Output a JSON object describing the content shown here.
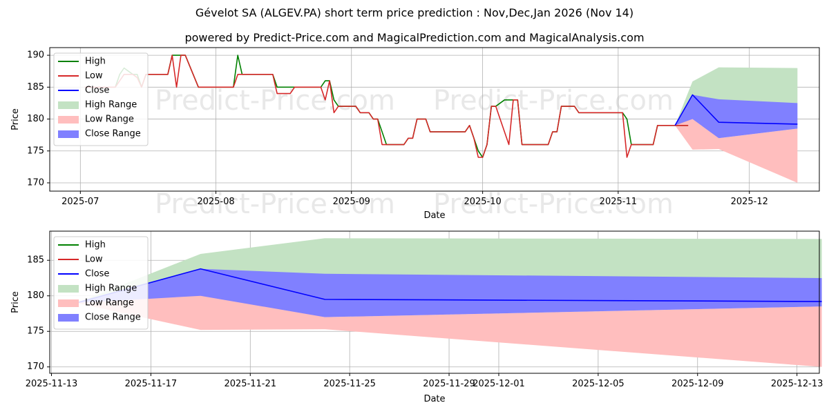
{
  "title": "Gévelot SA (ALGEV.PA) short term price prediction : Nov,Dec,Jan 2026 (Nov 14)",
  "subtitle": "powered by Predict-Price.com and MagicalPrediction.com and MagicalAnalysis.com",
  "watermark": "Predict-Price.com",
  "colors": {
    "high": "#008000",
    "low": "#d62728",
    "close": "#0000ff",
    "high_range": "#c3e2c3",
    "low_range": "#ffbebe",
    "close_range": "#8080ff"
  },
  "chart_data": [
    {
      "type": "line",
      "title": "Gévelot SA (ALGEV.PA) short term price prediction : Nov,Dec,Jan 2026 (Nov 14)",
      "xlabel": "Date",
      "ylabel": "Price",
      "xlim": [
        -7,
        169
      ],
      "ylim": [
        168.7,
        191.2
      ],
      "yticks": [
        170,
        175,
        180,
        185,
        190
      ],
      "xticks": [
        {
          "label": "2025-07",
          "x": 0
        },
        {
          "label": "2025-08",
          "x": 31
        },
        {
          "label": "2025-09",
          "x": 62
        },
        {
          "label": "2025-10",
          "x": 92
        },
        {
          "label": "2025-11",
          "x": 123
        },
        {
          "label": "2025-12",
          "x": 153
        }
      ],
      "grid": true,
      "legend_position": "top-left",
      "legend": [
        "High",
        "Low",
        "Close",
        "High Range",
        "Low Range",
        "Close Range"
      ],
      "series": [
        {
          "name": "High",
          "x": [
            1,
            3,
            6,
            8,
            9,
            10,
            11,
            12,
            13,
            14,
            15,
            20,
            21,
            22,
            23,
            24,
            27,
            35,
            36,
            37,
            44,
            45,
            46,
            47,
            48,
            49,
            50,
            55,
            56,
            57,
            58,
            59,
            60,
            61,
            62,
            63,
            64,
            65,
            66,
            67,
            68,
            69,
            70,
            71,
            72,
            73,
            74,
            75,
            76,
            77,
            78,
            79,
            80,
            81,
            82,
            83,
            84,
            85,
            86,
            87,
            88,
            89,
            90,
            91,
            92,
            93,
            94,
            95,
            96,
            97,
            98,
            99,
            100,
            101,
            102,
            103,
            104,
            105,
            106,
            107,
            108,
            109,
            110,
            111,
            112,
            113,
            114,
            115,
            116,
            117,
            118,
            119,
            120,
            121,
            122,
            123,
            124,
            125,
            126,
            127,
            128,
            129,
            130,
            131,
            132,
            133,
            134,
            135,
            136,
            137,
            138,
            139
          ],
          "values": [
            185,
            185,
            185,
            185,
            187,
            188,
            187.5,
            187,
            187,
            185,
            187,
            187,
            190,
            190,
            190,
            190,
            185,
            185,
            190,
            187,
            187,
            185,
            185,
            185,
            185,
            185,
            185,
            185,
            186,
            186,
            183,
            182,
            182,
            182,
            182,
            182,
            181,
            181,
            181,
            180,
            180,
            178,
            176,
            176,
            176,
            176,
            176,
            177,
            177,
            180,
            180,
            180,
            178,
            178,
            178,
            178,
            178,
            178,
            178,
            178,
            178,
            179,
            177,
            175,
            174,
            176,
            182,
            182,
            182.5,
            183,
            183,
            183,
            183,
            176,
            176,
            176,
            176,
            176,
            176,
            176,
            178,
            178,
            182,
            182,
            182,
            182,
            181,
            181,
            181,
            181,
            181,
            181,
            181,
            181,
            181,
            181,
            181,
            180,
            176,
            176,
            176,
            176,
            176,
            176,
            179,
            179,
            179,
            179,
            179,
            179,
            179,
            179
          ]
        },
        {
          "name": "Low",
          "x": [
            1,
            3,
            6,
            8,
            9,
            10,
            11,
            12,
            13,
            14,
            15,
            20,
            21,
            22,
            23,
            24,
            27,
            35,
            36,
            37,
            44,
            45,
            46,
            47,
            48,
            49,
            50,
            55,
            56,
            57,
            58,
            59,
            60,
            61,
            62,
            63,
            64,
            65,
            66,
            67,
            68,
            69,
            70,
            71,
            72,
            73,
            74,
            75,
            76,
            77,
            78,
            79,
            80,
            81,
            82,
            83,
            84,
            85,
            86,
            87,
            88,
            89,
            90,
            91,
            92,
            93,
            94,
            95,
            96,
            97,
            98,
            99,
            100,
            101,
            102,
            103,
            104,
            105,
            106,
            107,
            108,
            109,
            110,
            111,
            112,
            113,
            114,
            115,
            116,
            117,
            118,
            119,
            120,
            121,
            122,
            123,
            124,
            125,
            126,
            127,
            128,
            129,
            130,
            131,
            132,
            133,
            134,
            135,
            136,
            137,
            138,
            139
          ],
          "values": [
            185,
            185,
            185,
            185,
            186,
            187,
            187,
            187,
            186.5,
            185,
            187,
            187,
            190,
            185,
            190,
            190,
            185,
            185,
            187,
            187,
            187,
            184,
            184,
            184,
            184,
            185,
            185,
            185,
            183,
            186,
            181,
            182,
            182,
            182,
            182,
            182,
            181,
            181,
            181,
            180,
            180,
            176,
            176,
            176,
            176,
            176,
            176,
            177,
            177,
            180,
            180,
            180,
            178,
            178,
            178,
            178,
            178,
            178,
            178,
            178,
            178,
            179,
            177,
            174,
            174,
            176,
            182,
            182,
            180,
            178,
            176,
            183,
            183,
            176,
            176,
            176,
            176,
            176,
            176,
            176,
            178,
            178,
            182,
            182,
            182,
            182,
            181,
            181,
            181,
            181,
            181,
            181,
            181,
            181,
            181,
            181,
            181,
            174,
            176,
            176,
            176,
            176,
            176,
            176,
            179,
            179,
            179,
            179,
            179,
            179,
            179,
            179
          ]
        },
        {
          "name": "Close",
          "x": [
            136,
            140,
            146,
            164
          ],
          "values": [
            179,
            183.8,
            179.5,
            179.2
          ]
        },
        {
          "name": "High Range",
          "x": [
            136,
            140,
            146,
            164
          ],
          "lower": [
            179,
            183.8,
            179.5,
            182.5
          ],
          "upper": [
            179,
            185.9,
            188.1,
            188
          ]
        },
        {
          "name": "Low Range",
          "x": [
            136,
            140,
            146,
            164
          ],
          "lower": [
            179,
            175.2,
            175.3,
            170
          ],
          "upper": [
            179,
            180.6,
            177,
            178.5
          ]
        },
        {
          "name": "Close Range",
          "x": [
            136,
            140,
            146,
            164
          ],
          "lower": [
            179,
            180,
            177,
            178.5
          ],
          "upper": [
            179,
            183.8,
            183.1,
            182.5
          ]
        }
      ]
    },
    {
      "type": "line",
      "title": "",
      "xlabel": "Date",
      "ylabel": "Price",
      "xlim": [
        -0.07,
        30.9
      ],
      "ylim": [
        169.1,
        189.1
      ],
      "yticks": [
        170,
        175,
        180,
        185
      ],
      "xticks": [
        {
          "label": "2025-11-13",
          "x": 0
        },
        {
          "label": "2025-11-17",
          "x": 4
        },
        {
          "label": "2025-11-21",
          "x": 8
        },
        {
          "label": "2025-11-25",
          "x": 12
        },
        {
          "label": "2025-11-29",
          "x": 16
        },
        {
          "label": "2025-12-01",
          "x": 18
        },
        {
          "label": "2025-12-05",
          "x": 22
        },
        {
          "label": "2025-12-09",
          "x": 26
        },
        {
          "label": "2025-12-13",
          "x": 30
        }
      ],
      "grid": true,
      "legend_position": "top-left",
      "legend": [
        "High",
        "Low",
        "Close",
        "High Range",
        "Low Range",
        "Close Range"
      ],
      "series": [
        {
          "name": "High",
          "x": [],
          "values": []
        },
        {
          "name": "Low",
          "x": [],
          "values": []
        },
        {
          "name": "Close",
          "x": [
            1,
            6,
            11,
            31
          ],
          "values": [
            179,
            183.8,
            179.5,
            179.2
          ]
        },
        {
          "name": "High Range",
          "x": [
            1,
            6,
            11,
            31
          ],
          "lower": [
            179,
            183.8,
            179.5,
            182.5
          ],
          "upper": [
            179,
            185.9,
            188.1,
            188
          ]
        },
        {
          "name": "Low Range",
          "x": [
            1,
            6,
            11,
            31
          ],
          "lower": [
            179,
            175.2,
            175.3,
            170
          ],
          "upper": [
            179,
            180.6,
            177,
            178.5
          ]
        },
        {
          "name": "Close Range",
          "x": [
            1,
            6,
            11,
            31
          ],
          "lower": [
            179,
            180,
            177,
            178.5
          ],
          "upper": [
            179,
            183.8,
            183.1,
            182.5
          ]
        }
      ]
    }
  ]
}
